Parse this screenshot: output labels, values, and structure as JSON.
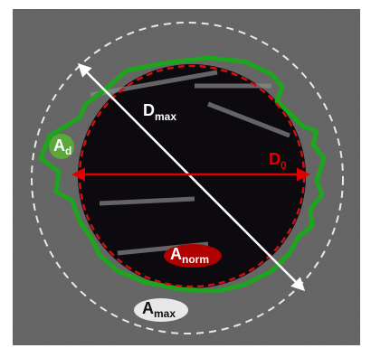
{
  "labels": [
    {
      "main": "D",
      "sub": "max"
    },
    {
      "main": "D",
      "sub": "0"
    },
    {
      "main": "A",
      "sub": "d"
    },
    {
      "main": "A",
      "sub": "norm"
    },
    {
      "main": "A",
      "sub": "max"
    }
  ]
}
